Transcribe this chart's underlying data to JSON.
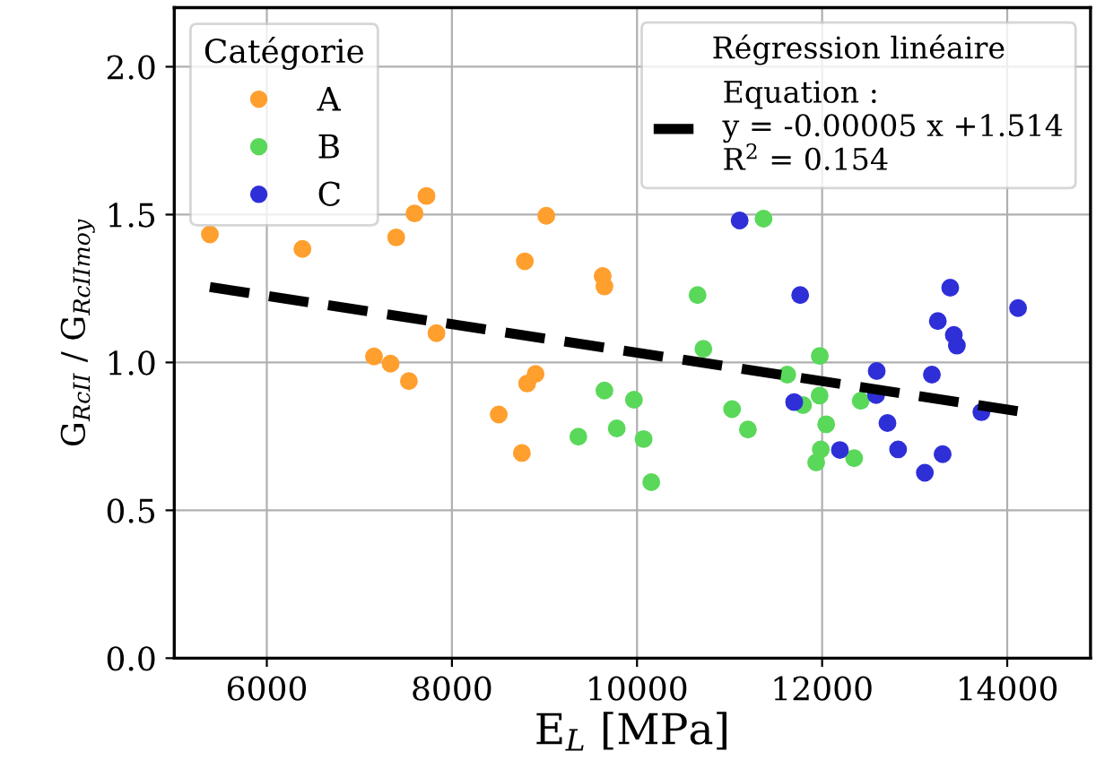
{
  "chart_data": {
    "type": "scatter",
    "xlabel": "E$_{L}$ [MPa]",
    "ylabel": "G$_{RcII}$ / G$_{RcIImoy}$",
    "legend_title": [
      "Catégorie",
      "Régression linéaire"
    ],
    "series": [
      {
        "name": "A",
        "color": "#ff9f2e",
        "x": [
          5385,
          6385,
          7398,
          7596,
          7725,
          9020,
          8788,
          7833,
          7158,
          7337,
          7535,
          8904,
          8813,
          8506,
          8756,
          9629,
          9648
        ],
        "values": [
          1.433,
          1.384,
          1.423,
          1.504,
          1.563,
          1.496,
          1.342,
          1.099,
          1.02,
          0.996,
          0.937,
          0.961,
          0.929,
          0.824,
          0.694,
          1.292,
          1.257
        ]
      },
      {
        "name": "B",
        "color": "#5ad85a",
        "x": [
          11367,
          10654,
          10717,
          11975,
          11623,
          9648,
          9967,
          11027,
          11794,
          11973,
          12044,
          11198,
          9781,
          9366,
          10071,
          10154,
          11986,
          11936,
          12346,
          12417
        ],
        "values": [
          1.486,
          1.228,
          1.046,
          1.022,
          0.959,
          0.905,
          0.874,
          0.842,
          0.856,
          0.888,
          0.791,
          0.773,
          0.777,
          0.749,
          0.741,
          0.595,
          0.706,
          0.662,
          0.676,
          0.87
        ]
      },
      {
        "name": "C",
        "color": "#2f2fd8",
        "x": [
          11109,
          11763,
          11698,
          12192,
          13384,
          14117,
          13250,
          13423,
          13456,
          12590,
          13186,
          12583,
          13721,
          12706,
          12821,
          13302,
          13110
        ],
        "values": [
          1.48,
          1.228,
          0.866,
          0.704,
          1.253,
          1.184,
          1.14,
          1.093,
          1.057,
          0.971,
          0.959,
          0.89,
          0.832,
          0.795,
          0.706,
          0.69,
          0.627
        ]
      },
      {
        "name": "Equation :\ny = -0.00005 x +1.514\nR$^{2}$ = 0.154",
        "type": "line",
        "marker": "none",
        "line_style": "dashed",
        "color": "#000000",
        "x": [
          5385,
          14117
        ],
        "values": [
          1.255,
          0.835
        ]
      }
    ],
    "marker": "circle",
    "xlim": [
      5000,
      14900
    ],
    "xticks": [
      6000,
      8000,
      10000,
      12000,
      14000
    ],
    "ylim": [
      0,
      2.2
    ],
    "yticks": [
      {
        "value": 0,
        "label": "0.0"
      },
      {
        "value": 0.5,
        "label": "0.5"
      },
      {
        "value": 1.0,
        "label": "1.0"
      },
      {
        "value": 1.5,
        "label": "1.5"
      },
      {
        "value": 2.0,
        "label": "2.0"
      }
    ],
    "grid": true,
    "legend": "top"
  }
}
